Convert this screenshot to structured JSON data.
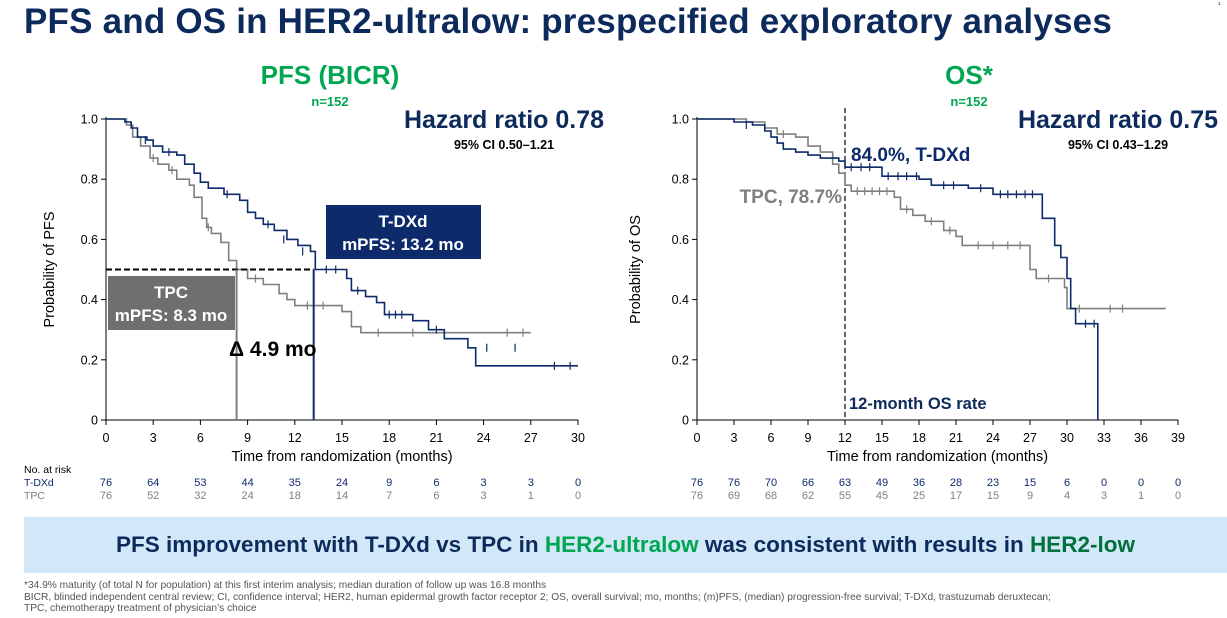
{
  "title": "PFS and OS in HER2-ultralow: prespecified exploratory analyses",
  "corner_mark": "¹",
  "banner": {
    "part1": "PFS improvement with T-DXd vs TPC in ",
    "part2": "HER2-ultralow",
    "part3": " was consistent with results in ",
    "part4": "HER2-low"
  },
  "footnotes": [
    "*34.9% maturity (of total N for population) at this first interim analysis; median duration of follow up was 16.8 months",
    "BICR, blinded independent central review; CI, confidence interval; HER2, human epidermal growth factor receptor 2; OS, overall survival; mo, months; (m)PFS, (median) progression-free survival; T-DXd, trastuzumab deruxtecan;",
    "TPC, chemotherapy treatment of physician’s choice"
  ],
  "colors": {
    "tdxd": "#0d2a6b",
    "tpc": "#7f7f7f",
    "green": "#00a651",
    "navy": "#0d2a5c"
  },
  "risk_header": "No. at risk",
  "chart_data": [
    {
      "type": "line",
      "subtype": "kaplan-meier",
      "title": "PFS (BICR)",
      "subtitle": "n=152",
      "xlabel": "Time from randomization (months)",
      "ylabel": "Probability of PFS",
      "xlim": [
        0,
        30
      ],
      "ylim": [
        0,
        1
      ],
      "xticks": [
        0,
        3,
        6,
        9,
        12,
        15,
        18,
        21,
        24,
        27,
        30
      ],
      "yticks": [
        0,
        0.2,
        0.4,
        0.6,
        0.8,
        1.0
      ],
      "ytick_labels": [
        "0",
        "0.2",
        "0.4",
        "0.6",
        "0.8",
        "1.0"
      ],
      "hr_text": "Hazard ratio 0.78",
      "ci_text": "95%  CI 0.50–1.21",
      "series": [
        {
          "name": "T-DXd",
          "color": "#0d2a6b",
          "points": [
            [
              0,
              1.0
            ],
            [
              1.2,
              0.99
            ],
            [
              1.6,
              0.97
            ],
            [
              2.0,
              0.94
            ],
            [
              2.6,
              0.93
            ],
            [
              3.0,
              0.91
            ],
            [
              3.6,
              0.89
            ],
            [
              4.5,
              0.88
            ],
            [
              5.0,
              0.85
            ],
            [
              5.6,
              0.82
            ],
            [
              6.0,
              0.79
            ],
            [
              6.5,
              0.77
            ],
            [
              7.5,
              0.75
            ],
            [
              8.5,
              0.73
            ],
            [
              9.0,
              0.69
            ],
            [
              9.5,
              0.67
            ],
            [
              10.0,
              0.65
            ],
            [
              10.7,
              0.63
            ],
            [
              11.5,
              0.6
            ],
            [
              12.2,
              0.58
            ],
            [
              13.0,
              0.56
            ],
            [
              13.3,
              0.5
            ],
            [
              15.3,
              0.47
            ],
            [
              15.6,
              0.43
            ],
            [
              16.5,
              0.41
            ],
            [
              17.2,
              0.39
            ],
            [
              17.7,
              0.35
            ],
            [
              19.5,
              0.33
            ],
            [
              20.5,
              0.3
            ],
            [
              21.5,
              0.27
            ],
            [
              23.0,
              0.24
            ],
            [
              23.5,
              0.18
            ],
            [
              30.0,
              0.18
            ]
          ],
          "censors": [
            [
              2.5,
              0.93
            ],
            [
              4.0,
              0.89
            ],
            [
              7.7,
              0.75
            ],
            [
              10.3,
              0.65
            ],
            [
              11.3,
              0.6
            ],
            [
              12.5,
              0.56
            ],
            [
              14.0,
              0.5
            ],
            [
              14.6,
              0.5
            ],
            [
              16.0,
              0.43
            ],
            [
              18.0,
              0.35
            ],
            [
              18.4,
              0.35
            ],
            [
              18.8,
              0.35
            ],
            [
              21.0,
              0.3
            ],
            [
              24.2,
              0.24
            ],
            [
              26.0,
              0.24
            ],
            [
              28.5,
              0.18
            ],
            [
              29.5,
              0.18
            ]
          ]
        },
        {
          "name": "TPC",
          "color": "#7f7f7f",
          "points": [
            [
              0,
              1.0
            ],
            [
              1.3,
              0.98
            ],
            [
              1.7,
              0.94
            ],
            [
              2.2,
              0.91
            ],
            [
              2.8,
              0.87
            ],
            [
              3.3,
              0.85
            ],
            [
              4.0,
              0.83
            ],
            [
              4.5,
              0.8
            ],
            [
              5.3,
              0.78
            ],
            [
              5.6,
              0.74
            ],
            [
              6.1,
              0.67
            ],
            [
              6.4,
              0.64
            ],
            [
              6.7,
              0.62
            ],
            [
              7.3,
              0.59
            ],
            [
              7.8,
              0.53
            ],
            [
              8.3,
              0.5
            ],
            [
              9.0,
              0.47
            ],
            [
              10.0,
              0.45
            ],
            [
              11.0,
              0.42
            ],
            [
              11.5,
              0.4
            ],
            [
              12.0,
              0.38
            ],
            [
              15.0,
              0.36
            ],
            [
              15.6,
              0.31
            ],
            [
              16.2,
              0.29
            ],
            [
              21.0,
              0.29
            ],
            [
              27.0,
              0.29
            ]
          ],
          "censors": [
            [
              3.0,
              0.87
            ],
            [
              4.2,
              0.83
            ],
            [
              6.5,
              0.64
            ],
            [
              9.5,
              0.47
            ],
            [
              12.8,
              0.38
            ],
            [
              13.8,
              0.38
            ],
            [
              17.3,
              0.29
            ],
            [
              19.5,
              0.29
            ],
            [
              25.5,
              0.29
            ],
            [
              26.5,
              0.29
            ]
          ]
        }
      ],
      "median_line": {
        "y": 0.5,
        "x_end": 13.2
      },
      "median_verticals": [
        {
          "x": 8.3,
          "series": "TPC"
        },
        {
          "x": 13.2,
          "series": "T-DXd"
        }
      ],
      "annotations": {
        "tdxd_box_line1": "T-DXd",
        "tdxd_box_line2": "mPFS: 13.2 mo",
        "tpc_box_line1": "TPC",
        "tpc_box_line2": "mPFS: 8.3 mo",
        "delta": "Δ 4.9 mo"
      },
      "risk_table": {
        "T-DXd": [
          "76",
          "64",
          "53",
          "44",
          "35",
          "24",
          "9",
          "6",
          "3",
          "3",
          "0"
        ],
        "TPC": [
          "76",
          "52",
          "32",
          "24",
          "18",
          "14",
          "7",
          "6",
          "3",
          "1",
          "0"
        ]
      }
    },
    {
      "type": "line",
      "subtype": "kaplan-meier",
      "title": "OS*",
      "subtitle": "n=152",
      "xlabel": "Time from randomization (months)",
      "ylabel": "Probability of OS",
      "xlim": [
        0,
        39
      ],
      "ylim": [
        0,
        1
      ],
      "xticks": [
        0,
        3,
        6,
        9,
        12,
        15,
        18,
        21,
        24,
        27,
        30,
        33,
        36,
        39
      ],
      "yticks": [
        0,
        0.2,
        0.4,
        0.6,
        0.8,
        1.0
      ],
      "ytick_labels": [
        "0",
        "0.2",
        "0.4",
        "0.6",
        "0.8",
        "1.0"
      ],
      "hr_text": "Hazard ratio 0.75",
      "ci_text": "95%  CI 0.43–1.29",
      "series": [
        {
          "name": "T-DXd",
          "color": "#0d2a6b",
          "points": [
            [
              0,
              1.0
            ],
            [
              3.0,
              0.99
            ],
            [
              4.5,
              0.98
            ],
            [
              5.5,
              0.96
            ],
            [
              6.0,
              0.94
            ],
            [
              6.5,
              0.92
            ],
            [
              7.0,
              0.9
            ],
            [
              8.0,
              0.89
            ],
            [
              9.0,
              0.88
            ],
            [
              10.0,
              0.87
            ],
            [
              11.5,
              0.86
            ],
            [
              12.0,
              0.84
            ],
            [
              15.0,
              0.81
            ],
            [
              18.0,
              0.8
            ],
            [
              19.0,
              0.78
            ],
            [
              22.0,
              0.77
            ],
            [
              24.0,
              0.75
            ],
            [
              27.5,
              0.75
            ],
            [
              28.0,
              0.67
            ],
            [
              29.0,
              0.58
            ],
            [
              29.5,
              0.54
            ],
            [
              30.0,
              0.47
            ],
            [
              30.3,
              0.37
            ],
            [
              30.7,
              0.32
            ],
            [
              32.5,
              0.32
            ],
            [
              32.5,
              0.0
            ]
          ],
          "censors": [
            [
              4.0,
              0.98
            ],
            [
              12.5,
              0.84
            ],
            [
              13.3,
              0.84
            ],
            [
              14.0,
              0.84
            ],
            [
              15.5,
              0.81
            ],
            [
              16.3,
              0.81
            ],
            [
              17.0,
              0.81
            ],
            [
              17.8,
              0.81
            ],
            [
              20.0,
              0.78
            ],
            [
              20.8,
              0.78
            ],
            [
              23.0,
              0.77
            ],
            [
              24.6,
              0.75
            ],
            [
              25.2,
              0.75
            ],
            [
              25.9,
              0.75
            ],
            [
              26.6,
              0.75
            ],
            [
              27.2,
              0.75
            ],
            [
              31.5,
              0.32
            ],
            [
              32.2,
              0.32
            ]
          ]
        },
        {
          "name": "TPC",
          "color": "#7f7f7f",
          "points": [
            [
              0,
              1.0
            ],
            [
              4.0,
              0.99
            ],
            [
              5.5,
              0.97
            ],
            [
              6.5,
              0.95
            ],
            [
              8.0,
              0.94
            ],
            [
              9.0,
              0.91
            ],
            [
              10.0,
              0.89
            ],
            [
              11.0,
              0.85
            ],
            [
              11.5,
              0.82
            ],
            [
              12.0,
              0.78
            ],
            [
              12.5,
              0.76
            ],
            [
              16.0,
              0.74
            ],
            [
              16.5,
              0.7
            ],
            [
              17.5,
              0.68
            ],
            [
              18.5,
              0.66
            ],
            [
              20.0,
              0.63
            ],
            [
              21.0,
              0.61
            ],
            [
              21.5,
              0.58
            ],
            [
              26.5,
              0.58
            ],
            [
              27.0,
              0.5
            ],
            [
              27.5,
              0.47
            ],
            [
              29.5,
              0.47
            ],
            [
              29.8,
              0.44
            ],
            [
              30.0,
              0.37
            ],
            [
              38.0,
              0.37
            ]
          ],
          "censors": [
            [
              7.0,
              0.95
            ],
            [
              13.0,
              0.76
            ],
            [
              13.6,
              0.76
            ],
            [
              14.2,
              0.76
            ],
            [
              14.8,
              0.76
            ],
            [
              15.4,
              0.76
            ],
            [
              17.0,
              0.7
            ],
            [
              19.0,
              0.66
            ],
            [
              20.5,
              0.63
            ],
            [
              22.8,
              0.58
            ],
            [
              24.0,
              0.58
            ],
            [
              25.2,
              0.58
            ],
            [
              26.2,
              0.58
            ],
            [
              28.5,
              0.47
            ],
            [
              31.0,
              0.37
            ],
            [
              33.5,
              0.37
            ],
            [
              34.5,
              0.37
            ]
          ]
        }
      ],
      "landmark": {
        "x": 12,
        "label": "12-month OS rate"
      },
      "annotations": {
        "tdxd_rate": "84.0%, T-DXd",
        "tpc_rate": "TPC, 78.7%"
      },
      "risk_table": {
        "T-DXd": [
          "76",
          "76",
          "70",
          "66",
          "63",
          "49",
          "36",
          "28",
          "23",
          "15",
          "6",
          "0",
          "0",
          "0"
        ],
        "TPC": [
          "76",
          "69",
          "68",
          "62",
          "55",
          "45",
          "25",
          "17",
          "15",
          "9",
          "4",
          "3",
          "1",
          "0"
        ]
      }
    }
  ]
}
